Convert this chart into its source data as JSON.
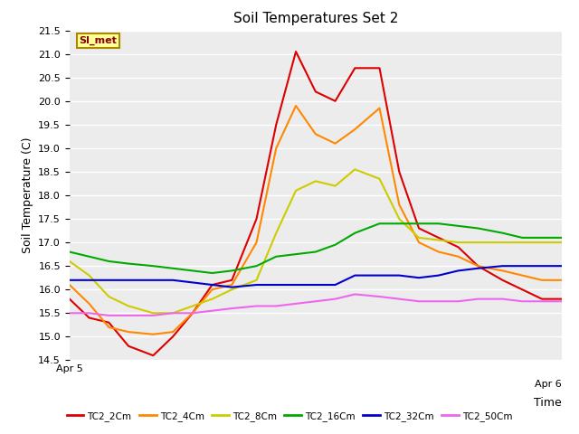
{
  "title": "Soil Temperatures Set 2",
  "ylabel": "Soil Temperature (C)",
  "xlim": [
    0,
    1
  ],
  "ylim": [
    14.5,
    21.5
  ],
  "yticks": [
    14.5,
    15.0,
    15.5,
    16.0,
    16.5,
    17.0,
    17.5,
    18.0,
    18.5,
    19.0,
    19.5,
    20.0,
    20.5,
    21.0,
    21.5
  ],
  "xtick_labels": [
    "Apr 5",
    "Apr 6"
  ],
  "xtick_positions": [
    0,
    1
  ],
  "annotation_text": "SI_met",
  "annotation_bg": "#ffff99",
  "annotation_border": "#aa8800",
  "annotation_text_color": "#880000",
  "background_color": "#f0f0f0",
  "plot_bg": "#ececec",
  "grid_color": "#ffffff",
  "series": {
    "TC2_2Cm": {
      "color": "#dd0000",
      "x": [
        0.0,
        0.04,
        0.08,
        0.12,
        0.17,
        0.21,
        0.25,
        0.29,
        0.33,
        0.38,
        0.42,
        0.46,
        0.5,
        0.54,
        0.58,
        0.63,
        0.67,
        0.71,
        0.75,
        0.79,
        0.83,
        0.88,
        0.92,
        0.96,
        1.0
      ],
      "y": [
        15.8,
        15.4,
        15.3,
        14.8,
        14.6,
        15.0,
        15.5,
        16.1,
        16.2,
        17.5,
        19.5,
        21.05,
        20.2,
        20.0,
        20.7,
        20.7,
        18.5,
        17.3,
        17.1,
        16.9,
        16.5,
        16.2,
        16.0,
        15.8,
        15.8
      ]
    },
    "TC2_4Cm": {
      "color": "#ff8800",
      "x": [
        0.0,
        0.04,
        0.08,
        0.12,
        0.17,
        0.21,
        0.25,
        0.29,
        0.33,
        0.38,
        0.42,
        0.46,
        0.5,
        0.54,
        0.58,
        0.63,
        0.67,
        0.71,
        0.75,
        0.79,
        0.83,
        0.88,
        0.92,
        0.96,
        1.0
      ],
      "y": [
        16.1,
        15.7,
        15.2,
        15.1,
        15.05,
        15.1,
        15.5,
        16.0,
        16.1,
        17.0,
        19.0,
        19.9,
        19.3,
        19.1,
        19.4,
        19.85,
        17.8,
        17.0,
        16.8,
        16.7,
        16.5,
        16.4,
        16.3,
        16.2,
        16.2
      ]
    },
    "TC2_8Cm": {
      "color": "#cccc00",
      "x": [
        0.0,
        0.04,
        0.08,
        0.12,
        0.17,
        0.21,
        0.25,
        0.29,
        0.33,
        0.38,
        0.42,
        0.46,
        0.5,
        0.54,
        0.58,
        0.63,
        0.67,
        0.71,
        0.75,
        0.79,
        0.83,
        0.88,
        0.92,
        0.96,
        1.0
      ],
      "y": [
        16.6,
        16.3,
        15.85,
        15.65,
        15.5,
        15.5,
        15.65,
        15.8,
        16.0,
        16.2,
        17.2,
        18.1,
        18.3,
        18.2,
        18.55,
        18.35,
        17.5,
        17.1,
        17.05,
        17.0,
        17.0,
        17.0,
        17.0,
        17.0,
        17.0
      ]
    },
    "TC2_16Cm": {
      "color": "#00aa00",
      "x": [
        0.0,
        0.04,
        0.08,
        0.12,
        0.17,
        0.21,
        0.25,
        0.29,
        0.33,
        0.38,
        0.42,
        0.46,
        0.5,
        0.54,
        0.58,
        0.63,
        0.67,
        0.71,
        0.75,
        0.79,
        0.83,
        0.88,
        0.92,
        0.96,
        1.0
      ],
      "y": [
        16.8,
        16.7,
        16.6,
        16.55,
        16.5,
        16.45,
        16.4,
        16.35,
        16.4,
        16.5,
        16.7,
        16.75,
        16.8,
        16.95,
        17.2,
        17.4,
        17.4,
        17.4,
        17.4,
        17.35,
        17.3,
        17.2,
        17.1,
        17.1,
        17.1
      ]
    },
    "TC2_32Cm": {
      "color": "#0000cc",
      "x": [
        0.0,
        0.04,
        0.08,
        0.12,
        0.17,
        0.21,
        0.25,
        0.29,
        0.33,
        0.38,
        0.42,
        0.46,
        0.5,
        0.54,
        0.58,
        0.63,
        0.67,
        0.71,
        0.75,
        0.79,
        0.83,
        0.88,
        0.92,
        0.96,
        1.0
      ],
      "y": [
        16.2,
        16.2,
        16.2,
        16.2,
        16.2,
        16.2,
        16.15,
        16.1,
        16.05,
        16.1,
        16.1,
        16.1,
        16.1,
        16.1,
        16.3,
        16.3,
        16.3,
        16.25,
        16.3,
        16.4,
        16.45,
        16.5,
        16.5,
        16.5,
        16.5
      ]
    },
    "TC2_50Cm": {
      "color": "#ee66ee",
      "x": [
        0.0,
        0.04,
        0.08,
        0.12,
        0.17,
        0.21,
        0.25,
        0.29,
        0.33,
        0.38,
        0.42,
        0.46,
        0.5,
        0.54,
        0.58,
        0.63,
        0.67,
        0.71,
        0.75,
        0.79,
        0.83,
        0.88,
        0.92,
        0.96,
        1.0
      ],
      "y": [
        15.5,
        15.5,
        15.45,
        15.45,
        15.45,
        15.5,
        15.5,
        15.55,
        15.6,
        15.65,
        15.65,
        15.7,
        15.75,
        15.8,
        15.9,
        15.85,
        15.8,
        15.75,
        15.75,
        15.75,
        15.8,
        15.8,
        15.75,
        15.75,
        15.75
      ]
    }
  }
}
